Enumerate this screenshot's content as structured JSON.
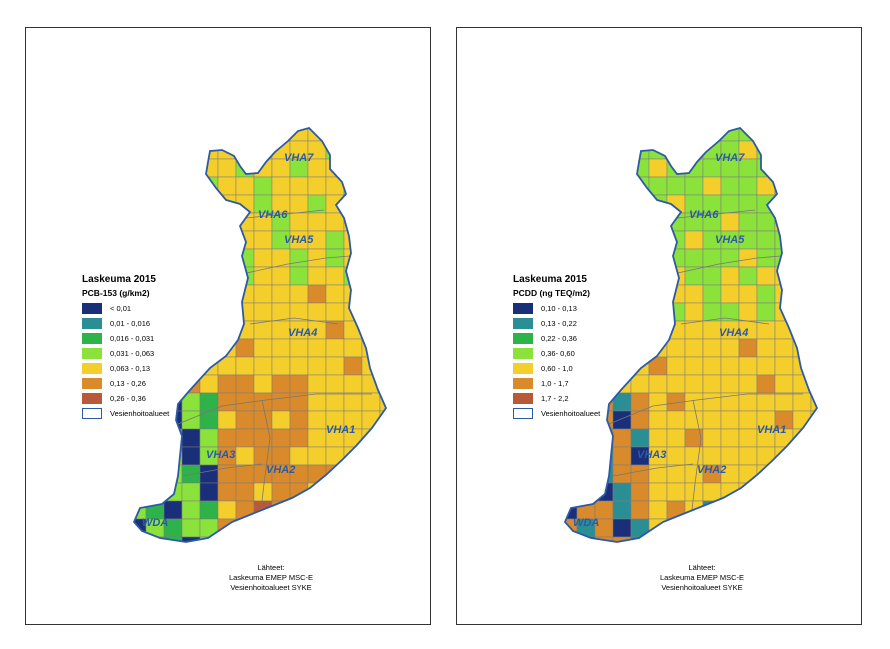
{
  "maps": [
    {
      "legend_title": "Laskeuma 2015",
      "legend_subtitle": "PCB-153 (g/km2)",
      "classes": [
        {
          "label": "< 0,01",
          "color": "#1a2f7a"
        },
        {
          "label": "0,01 - 0,016",
          "color": "#2a8f95"
        },
        {
          "label": "0,016 - 0,031",
          "color": "#2eb34a"
        },
        {
          "label": "0,031 - 0,063",
          "color": "#8be23a"
        },
        {
          "label": "0,063 - 0,13",
          "color": "#f4cf2c"
        },
        {
          "label": "0,13 - 0,26",
          "color": "#d98a2a"
        },
        {
          "label": "0,26 - 0,36",
          "color": "#b85a3a"
        }
      ],
      "outline_label": "Vesienhoitoalueet",
      "regions": [
        "VHA7",
        "VHA6",
        "VHA5",
        "VHA4",
        "VHA3",
        "VHA2",
        "VHA1",
        "WDA"
      ],
      "sources": [
        "Lähteet:",
        "Laskeuma EMEP MSC-E",
        "Vesienhoitoalueet SYKE"
      ]
    },
    {
      "legend_title": "Laskeuma 2015",
      "legend_subtitle": "PCDD (ng TEQ/m2)",
      "classes": [
        {
          "label": "0,10 - 0,13",
          "color": "#1a2f7a"
        },
        {
          "label": "0,13 - 0,22",
          "color": "#2a8f95"
        },
        {
          "label": "0,22 - 0,36",
          "color": "#2eb34a"
        },
        {
          "label": "0,36- 0,60",
          "color": "#8be23a"
        },
        {
          "label": "0,60 - 1,0",
          "color": "#f4cf2c"
        },
        {
          "label": "1,0 - 1,7",
          "color": "#d98a2a"
        },
        {
          "label": "1,7 - 2,2",
          "color": "#b85a3a"
        }
      ],
      "outline_label": "Vesienhoitoalueet",
      "regions": [
        "VHA7",
        "VHA6",
        "VHA5",
        "VHA4",
        "VHA3",
        "VHA2",
        "VHA1",
        "WDA"
      ],
      "sources": [
        "Lähteet:",
        "Laskeuma EMEP MSC-E",
        "Vesienhoitoalueet SYKE"
      ]
    }
  ],
  "region_label_color": "#2b5aa6",
  "outline_color": "#2b5aa6"
}
